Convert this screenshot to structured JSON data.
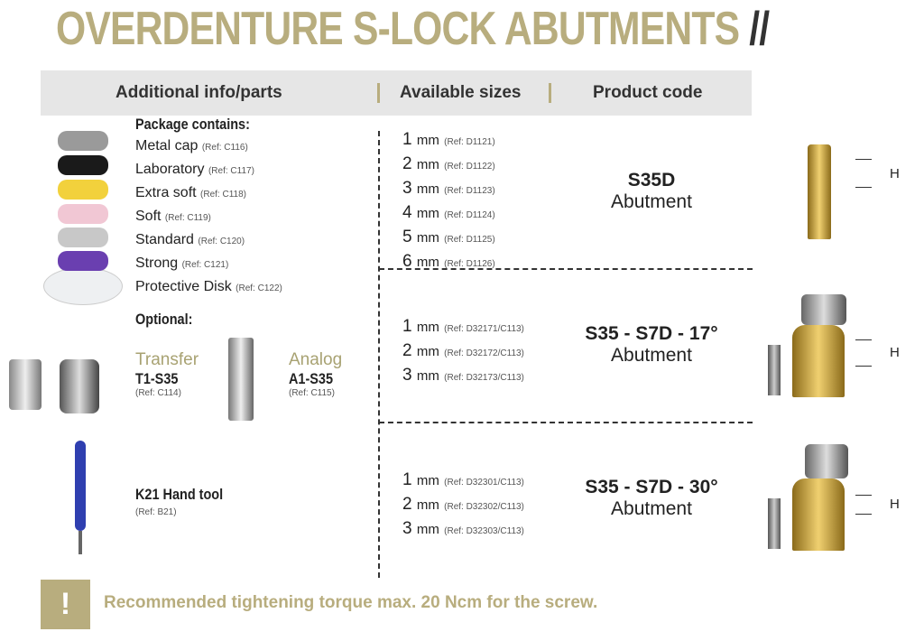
{
  "title": {
    "text": "OVERDENTURE S-LOCK ABUTMENTS",
    "suffix": "//"
  },
  "header": {
    "col1": "Additional info/parts",
    "col2": "Available sizes",
    "col3": "Product code"
  },
  "package": {
    "heading": "Package contains:",
    "items": [
      {
        "name": "Metal cap",
        "ref": "(Ref: C116)"
      },
      {
        "name": "Laboratory",
        "ref": "(Ref: C117)"
      },
      {
        "name": "Extra soft",
        "ref": "(Ref: C118)"
      },
      {
        "name": "Soft",
        "ref": "(Ref: C119)"
      },
      {
        "name": "Standard",
        "ref": "(Ref: C120)"
      },
      {
        "name": "Strong",
        "ref": "(Ref: C121)"
      },
      {
        "name": "Protective Disk",
        "ref": "(Ref: C122)"
      }
    ],
    "cap_colors": [
      "#9a9a9a",
      "#1a1a1a",
      "#f2d13c",
      "#f1c7d4",
      "#c8c8c8",
      "#6a3fb0"
    ]
  },
  "optional": {
    "heading": "Optional:",
    "transfer": {
      "label": "Transfer",
      "code": "T1-S35",
      "ref": "(Ref: C114)"
    },
    "analog": {
      "label": "Analog",
      "code": "A1-S35",
      "ref": "(Ref: C115)"
    },
    "tool": {
      "code": "K21 Hand tool",
      "ref": "(Ref: B21)"
    }
  },
  "products": [
    {
      "code": "S35D",
      "type": "Abutment",
      "sizes": [
        {
          "mm": "1",
          "unit": "mm",
          "ref": "(Ref: D1121)"
        },
        {
          "mm": "2",
          "unit": "mm",
          "ref": "(Ref: D1122)"
        },
        {
          "mm": "3",
          "unit": "mm",
          "ref": "(Ref: D1123)"
        },
        {
          "mm": "4",
          "unit": "mm",
          "ref": "(Ref: D1124)"
        },
        {
          "mm": "5",
          "unit": "mm",
          "ref": "(Ref: D1125)"
        },
        {
          "mm": "6",
          "unit": "mm",
          "ref": "(Ref: D1126)"
        }
      ]
    },
    {
      "code": "S35 - S7D - 17°",
      "type": "Abutment",
      "sizes": [
        {
          "mm": "1",
          "unit": "mm",
          "ref": "(Ref: D32171/C113)"
        },
        {
          "mm": "2",
          "unit": "mm",
          "ref": "(Ref: D32172/C113)"
        },
        {
          "mm": "3",
          "unit": "mm",
          "ref": "(Ref: D32173/C113)"
        }
      ]
    },
    {
      "code": "S35 - S7D - 30°",
      "type": "Abutment",
      "sizes": [
        {
          "mm": "1",
          "unit": "mm",
          "ref": "(Ref: D32301/C113)"
        },
        {
          "mm": "2",
          "unit": "mm",
          "ref": "(Ref: D32302/C113)"
        },
        {
          "mm": "3",
          "unit": "mm",
          "ref": "(Ref: D32303/C113)"
        }
      ]
    }
  ],
  "height_label": "H",
  "note": {
    "icon": "!",
    "text": "Recommended tightening torque max. 20 Ncm for the screw."
  },
  "colors": {
    "gold": "#b8ad7e",
    "header_bg": "#e6e6e6"
  }
}
